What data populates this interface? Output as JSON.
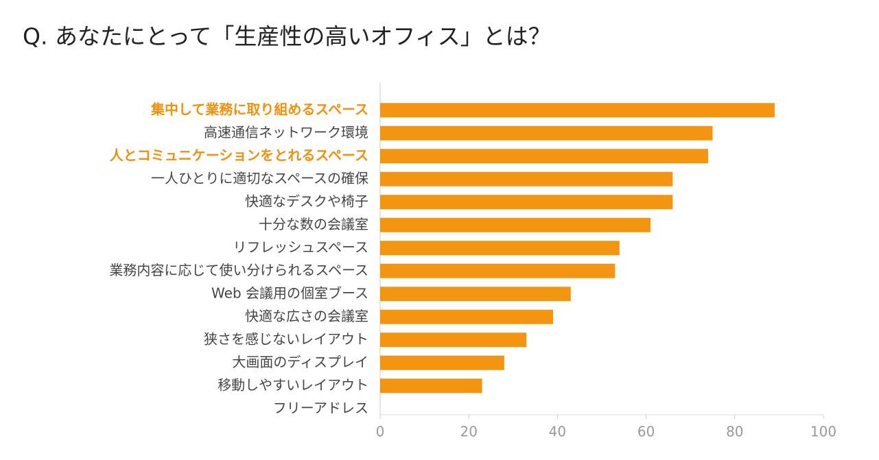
{
  "chart_data": {
    "type": "barh",
    "title": "Q. あなたにとって「生産性の高いオフィス」とは？",
    "categories": [
      "集中して業務に取り組めるスペース",
      "高速通信ネットワーク環境",
      "人とコミュニケーションをとれるスペース",
      "一人ひとりに適切なスペースの確保",
      "快適なデスクや椅子",
      "十分な数の会議室",
      "リフレッシュスペース",
      "業務内容に応じて使い分けられるスペース",
      "Web 会議用の個室ブース",
      "快適な広さの会議室",
      "狭さを感じないレイアウト",
      "大画面のディスプレイ",
      "移動しやすいレイアウト",
      "フリーアドレス"
    ],
    "values": [
      89,
      75,
      74,
      66,
      66,
      61,
      54,
      53,
      43,
      39,
      33,
      28,
      23,
      0
    ],
    "color": "#f39511",
    "highlight": [
      0,
      2
    ],
    "highlight_color": "#f0900c",
    "xlim": [
      0,
      100
    ],
    "xticks": [
      0,
      20,
      40,
      60,
      80,
      100
    ]
  }
}
